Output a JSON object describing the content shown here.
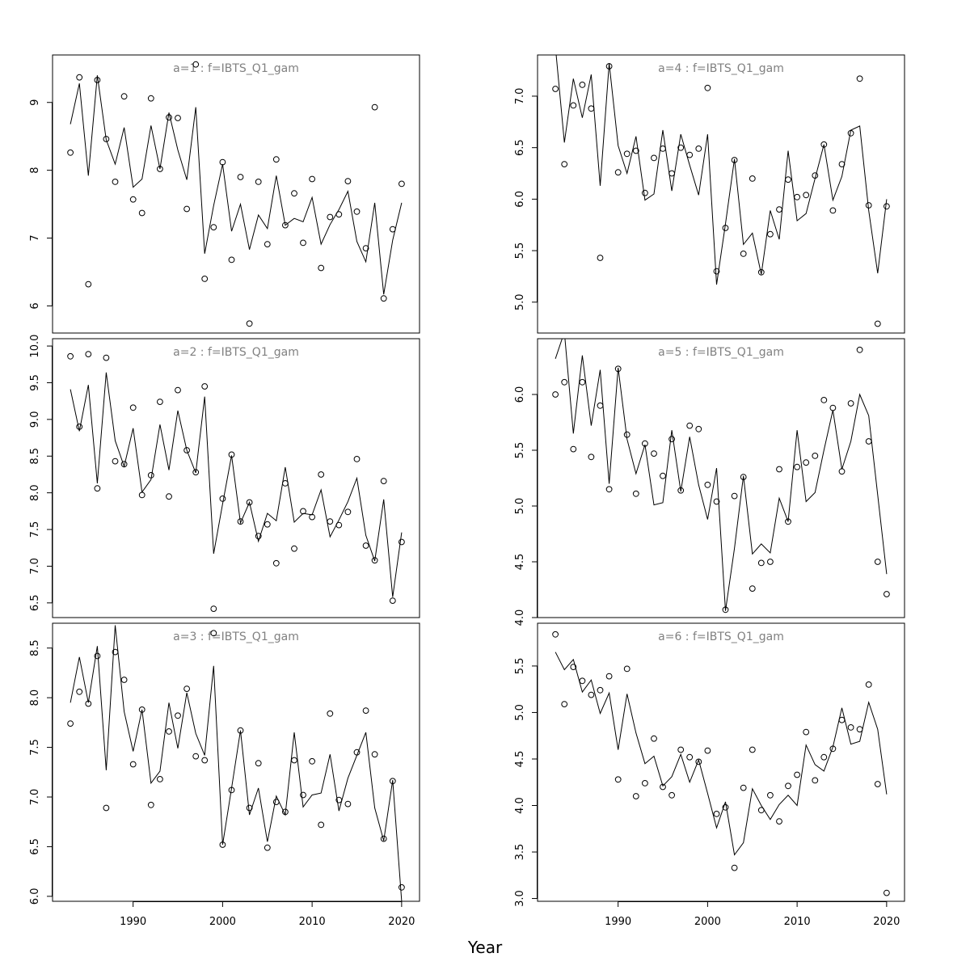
{
  "figure": {
    "xlabel": "Year"
  },
  "chart_data": [
    {
      "type": "line",
      "title": "a=1  :  f=IBTS_Q1_gam",
      "xlabel": "",
      "ylabel": "",
      "xlim": [
        1981,
        2022
      ],
      "ylim": [
        5.6,
        9.7
      ],
      "xticks": [
        1990,
        2000,
        2010,
        2020
      ],
      "show_xticks": false,
      "yticks": [
        6,
        7,
        8,
        9
      ],
      "grid": false,
      "x": [
        1983,
        1984,
        1985,
        1986,
        1987,
        1988,
        1989,
        1990,
        1991,
        1992,
        1993,
        1994,
        1995,
        1996,
        1997,
        1998,
        1999,
        2000,
        2001,
        2002,
        2003,
        2004,
        2005,
        2006,
        2007,
        2008,
        2009,
        2010,
        2011,
        2012,
        2013,
        2014,
        2015,
        2016,
        2017,
        2018,
        2019,
        2020
      ],
      "series": [
        {
          "style": "points",
          "values": [
            8.26,
            9.37,
            6.32,
            9.33,
            8.46,
            7.83,
            9.09,
            7.57,
            7.37,
            9.06,
            8.02,
            8.78,
            8.77,
            7.43,
            9.56,
            6.4,
            7.16,
            8.12,
            6.68,
            7.9,
            5.74,
            7.83,
            6.91,
            8.16,
            7.19,
            7.66,
            6.93,
            7.87,
            6.56,
            7.31,
            7.35,
            7.84,
            7.39,
            6.85,
            8.93,
            6.11,
            7.13,
            7.8
          ]
        },
        {
          "style": "line",
          "values": [
            8.68,
            9.28,
            7.92,
            9.4,
            8.45,
            8.09,
            8.63,
            7.75,
            7.87,
            8.66,
            8.02,
            8.85,
            8.3,
            7.86,
            8.93,
            6.77,
            7.48,
            8.09,
            7.1,
            7.5,
            6.83,
            7.34,
            7.14,
            7.92,
            7.19,
            7.29,
            7.24,
            7.6,
            6.91,
            7.2,
            7.42,
            7.69,
            6.95,
            6.65,
            7.52,
            6.17,
            6.97,
            7.52
          ]
        }
      ]
    },
    {
      "type": "line",
      "title": "a=4  :  f=IBTS_Q1_gam",
      "xlabel": "",
      "ylabel": "",
      "xlim": [
        1981,
        2022
      ],
      "ylim": [
        4.7,
        7.4
      ],
      "xticks": [
        1990,
        2000,
        2010,
        2020
      ],
      "show_xticks": false,
      "yticks": [
        5.0,
        5.5,
        6.0,
        6.5,
        7.0
      ],
      "grid": false,
      "x": [
        1983,
        1984,
        1985,
        1986,
        1987,
        1988,
        1989,
        1990,
        1991,
        1992,
        1993,
        1994,
        1995,
        1996,
        1997,
        1998,
        1999,
        2000,
        2001,
        2002,
        2003,
        2004,
        2005,
        2006,
        2007,
        2008,
        2009,
        2010,
        2011,
        2012,
        2013,
        2014,
        2015,
        2016,
        2017,
        2018,
        2019,
        2020
      ],
      "series": [
        {
          "style": "points",
          "values": [
            7.07,
            6.34,
            6.91,
            7.11,
            6.88,
            5.43,
            7.29,
            6.26,
            6.44,
            6.47,
            6.06,
            6.4,
            6.49,
            6.25,
            6.5,
            6.43,
            6.49,
            7.08,
            5.3,
            5.72,
            6.38,
            5.47,
            6.2,
            5.29,
            5.66,
            5.9,
            6.19,
            6.02,
            6.04,
            6.23,
            6.53,
            5.89,
            6.34,
            6.64,
            7.17,
            5.94,
            4.79,
            5.93
          ]
        },
        {
          "style": "line",
          "values": [
            7.48,
            6.55,
            7.17,
            6.79,
            7.21,
            6.13,
            7.32,
            6.52,
            6.25,
            6.61,
            5.99,
            6.05,
            6.67,
            6.08,
            6.63,
            6.33,
            6.04,
            6.63,
            5.17,
            5.76,
            6.39,
            5.56,
            5.67,
            5.27,
            5.89,
            5.61,
            6.47,
            5.79,
            5.86,
            6.2,
            6.53,
            5.99,
            6.22,
            6.67,
            6.71,
            5.89,
            5.28,
            6.0
          ]
        }
      ]
    },
    {
      "type": "line",
      "title": "a=2  :  f=IBTS_Q1_gam",
      "xlabel": "",
      "ylabel": "",
      "xlim": [
        1981,
        2022
      ],
      "ylim": [
        6.3,
        10.1
      ],
      "xticks": [
        1990,
        2000,
        2010,
        2020
      ],
      "show_xticks": false,
      "yticks": [
        6.5,
        7.0,
        7.5,
        8.0,
        8.5,
        9.0,
        9.5,
        10.0
      ],
      "grid": false,
      "x": [
        1983,
        1984,
        1985,
        1986,
        1987,
        1988,
        1989,
        1990,
        1991,
        1992,
        1993,
        1994,
        1995,
        1996,
        1997,
        1998,
        1999,
        2000,
        2001,
        2002,
        2003,
        2004,
        2005,
        2006,
        2007,
        2008,
        2009,
        2010,
        2011,
        2012,
        2013,
        2014,
        2015,
        2016,
        2017,
        2018,
        2019,
        2020
      ],
      "series": [
        {
          "style": "points",
          "values": [
            9.86,
            8.9,
            9.89,
            8.06,
            9.84,
            8.43,
            8.39,
            9.16,
            7.97,
            8.24,
            9.24,
            7.95,
            9.4,
            8.58,
            8.28,
            9.45,
            6.42,
            7.92,
            8.52,
            7.61,
            7.87,
            7.41,
            7.57,
            7.04,
            8.13,
            7.24,
            7.75,
            7.67,
            8.25,
            7.61,
            7.56,
            7.74,
            8.46,
            7.28,
            7.08,
            8.16,
            6.53,
            7.33
          ]
        },
        {
          "style": "line",
          "values": [
            9.41,
            8.84,
            9.47,
            8.13,
            9.64,
            8.71,
            8.36,
            8.88,
            8.01,
            8.18,
            8.93,
            8.31,
            9.12,
            8.58,
            8.27,
            9.31,
            7.17,
            7.85,
            8.51,
            7.59,
            7.87,
            7.34,
            7.72,
            7.62,
            8.35,
            7.6,
            7.72,
            7.7,
            8.04,
            7.4,
            7.63,
            7.88,
            8.2,
            7.42,
            7.07,
            7.91,
            6.58,
            7.46
          ]
        }
      ]
    },
    {
      "type": "line",
      "title": "a=5  :  f=IBTS_Q1_gam",
      "xlabel": "",
      "ylabel": "",
      "xlim": [
        1981,
        2022
      ],
      "ylim": [
        4.0,
        6.5
      ],
      "xticks": [
        1990,
        2000,
        2010,
        2020
      ],
      "show_xticks": false,
      "yticks": [
        4.0,
        4.5,
        5.0,
        5.5,
        6.0
      ],
      "grid": false,
      "x": [
        1983,
        1984,
        1985,
        1986,
        1987,
        1988,
        1989,
        1990,
        1991,
        1992,
        1993,
        1994,
        1995,
        1996,
        1997,
        1998,
        1999,
        2000,
        2001,
        2002,
        2003,
        2004,
        2005,
        2006,
        2007,
        2008,
        2009,
        2010,
        2011,
        2012,
        2013,
        2014,
        2015,
        2016,
        2017,
        2018,
        2019,
        2020
      ],
      "series": [
        {
          "style": "points",
          "values": [
            6.0,
            6.11,
            5.51,
            6.11,
            5.44,
            5.9,
            5.15,
            6.23,
            5.64,
            5.11,
            5.56,
            5.47,
            5.27,
            5.6,
            5.14,
            5.72,
            5.69,
            5.19,
            5.04,
            4.07,
            5.09,
            5.26,
            4.26,
            4.49,
            4.5,
            5.33,
            4.86,
            5.35,
            5.39,
            5.45,
            5.95,
            5.88,
            5.31,
            5.92,
            6.4,
            5.58,
            4.5,
            4.21
          ]
        },
        {
          "style": "line",
          "values": [
            6.32,
            6.56,
            5.65,
            6.35,
            5.72,
            6.22,
            5.2,
            6.24,
            5.6,
            5.29,
            5.55,
            5.01,
            5.03,
            5.68,
            5.13,
            5.62,
            5.19,
            4.88,
            5.34,
            4.06,
            4.62,
            5.27,
            4.57,
            4.66,
            4.58,
            5.07,
            4.86,
            5.68,
            5.04,
            5.12,
            5.5,
            5.86,
            5.33,
            5.58,
            6.0,
            5.81,
            5.1,
            4.39
          ]
        }
      ]
    },
    {
      "type": "line",
      "title": "a=3  :  f=IBTS_Q1_gam",
      "xlabel": "",
      "ylabel": "",
      "xlim": [
        1981,
        2022
      ],
      "ylim": [
        5.95,
        8.75
      ],
      "xticks": [
        1990,
        2000,
        2010,
        2020
      ],
      "show_xticks": true,
      "yticks": [
        6.0,
        6.5,
        7.0,
        7.5,
        8.0,
        8.5
      ],
      "grid": false,
      "x": [
        1983,
        1984,
        1985,
        1986,
        1987,
        1988,
        1989,
        1990,
        1991,
        1992,
        1993,
        1994,
        1995,
        1996,
        1997,
        1998,
        1999,
        2000,
        2001,
        2002,
        2003,
        2004,
        2005,
        2006,
        2007,
        2008,
        2009,
        2010,
        2011,
        2012,
        2013,
        2014,
        2015,
        2016,
        2017,
        2018,
        2019,
        2020
      ],
      "series": [
        {
          "style": "points",
          "values": [
            7.74,
            8.06,
            7.94,
            8.42,
            6.89,
            8.46,
            8.18,
            7.33,
            7.88,
            6.92,
            7.18,
            7.66,
            7.82,
            8.09,
            7.41,
            7.37,
            8.65,
            6.52,
            7.07,
            7.67,
            6.89,
            7.34,
            6.49,
            6.95,
            6.85,
            7.37,
            7.02,
            7.36,
            6.72,
            7.84,
            6.97,
            6.93,
            7.45,
            7.87,
            7.43,
            6.58,
            7.16,
            6.09
          ]
        },
        {
          "style": "line",
          "values": [
            7.95,
            8.41,
            7.95,
            8.52,
            7.27,
            8.73,
            7.86,
            7.46,
            7.88,
            7.14,
            7.26,
            7.95,
            7.49,
            8.05,
            7.64,
            7.42,
            8.32,
            6.52,
            7.09,
            7.67,
            6.82,
            7.09,
            6.55,
            7.01,
            6.82,
            7.65,
            6.9,
            7.02,
            7.04,
            7.43,
            6.86,
            7.19,
            7.42,
            7.65,
            6.89,
            6.56,
            7.17,
            5.95
          ]
        }
      ]
    },
    {
      "type": "line",
      "title": "a=6  :  f=IBTS_Q1_gam",
      "xlabel": "",
      "ylabel": "",
      "xlim": [
        1981,
        2022
      ],
      "ylim": [
        2.97,
        5.96
      ],
      "xticks": [
        1990,
        2000,
        2010,
        2020
      ],
      "show_xticks": true,
      "yticks": [
        3.0,
        3.5,
        4.0,
        4.5,
        5.0,
        5.5
      ],
      "grid": false,
      "x": [
        1983,
        1984,
        1985,
        1986,
        1987,
        1988,
        1989,
        1990,
        1991,
        1992,
        1993,
        1994,
        1995,
        1996,
        1997,
        1998,
        1999,
        2000,
        2001,
        2002,
        2003,
        2004,
        2005,
        2006,
        2007,
        2008,
        2009,
        2010,
        2011,
        2012,
        2013,
        2014,
        2015,
        2016,
        2017,
        2018,
        2019,
        2020
      ],
      "series": [
        {
          "style": "points",
          "values": [
            5.84,
            5.09,
            5.49,
            5.34,
            5.19,
            5.24,
            5.39,
            4.28,
            5.47,
            4.1,
            4.24,
            4.72,
            4.2,
            4.11,
            4.6,
            4.52,
            4.47,
            4.59,
            3.91,
            3.98,
            3.33,
            4.19,
            4.6,
            3.95,
            4.11,
            3.83,
            4.21,
            4.33,
            4.79,
            4.27,
            4.52,
            4.61,
            4.92,
            4.84,
            4.82,
            5.3,
            4.23,
            3.06
          ]
        },
        {
          "style": "line",
          "values": [
            5.65,
            5.46,
            5.57,
            5.22,
            5.35,
            4.99,
            5.21,
            4.6,
            5.2,
            4.78,
            4.45,
            4.53,
            4.21,
            4.31,
            4.55,
            4.25,
            4.49,
            4.13,
            3.76,
            4.04,
            3.47,
            3.6,
            4.18,
            4.0,
            3.85,
            4.01,
            4.11,
            4.0,
            4.65,
            4.44,
            4.37,
            4.63,
            5.05,
            4.66,
            4.69,
            5.11,
            4.82,
            4.12
          ]
        }
      ]
    }
  ]
}
